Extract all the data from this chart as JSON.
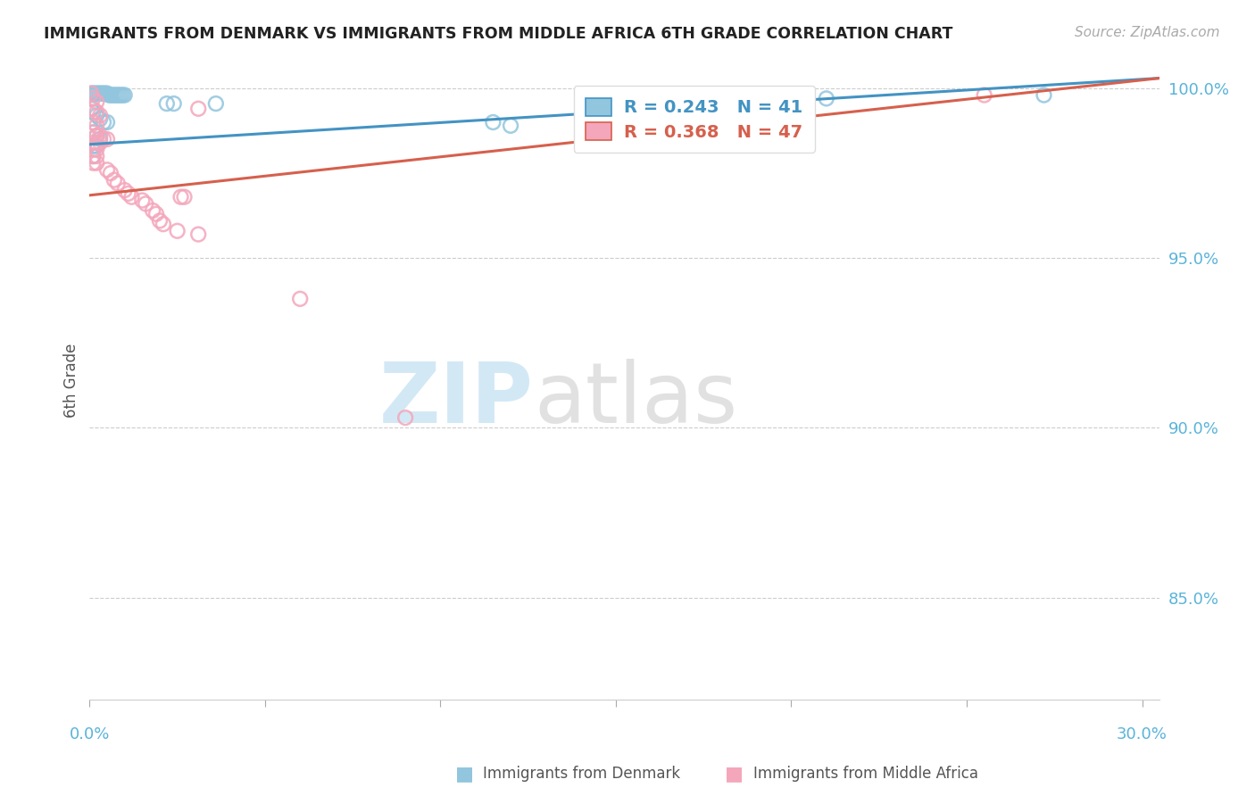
{
  "title": "IMMIGRANTS FROM DENMARK VS IMMIGRANTS FROM MIDDLE AFRICA 6TH GRADE CORRELATION CHART",
  "source": "Source: ZipAtlas.com",
  "ylabel": "6th Grade",
  "ymin": 0.82,
  "ymax": 1.008,
  "xmin": 0.0,
  "xmax": 0.305,
  "blue_color": "#92c5de",
  "pink_color": "#f4a6bb",
  "blue_line_color": "#4393c3",
  "pink_line_color": "#d6604d",
  "legend_text_blue": "#4393c3",
  "legend_text_pink": "#d6604d",
  "blue_points": [
    [
      0.0005,
      0.9985
    ],
    [
      0.001,
      0.9985
    ],
    [
      0.0015,
      0.9985
    ],
    [
      0.002,
      0.9985
    ],
    [
      0.0025,
      0.9985
    ],
    [
      0.003,
      0.9985
    ],
    [
      0.0035,
      0.9985
    ],
    [
      0.004,
      0.9985
    ],
    [
      0.0045,
      0.9985
    ],
    [
      0.005,
      0.9985
    ],
    [
      0.0055,
      0.998
    ],
    [
      0.006,
      0.998
    ],
    [
      0.0065,
      0.998
    ],
    [
      0.007,
      0.998
    ],
    [
      0.0075,
      0.998
    ],
    [
      0.008,
      0.998
    ],
    [
      0.0085,
      0.998
    ],
    [
      0.009,
      0.998
    ],
    [
      0.0095,
      0.998
    ],
    [
      0.01,
      0.998
    ],
    [
      0.0005,
      0.994
    ],
    [
      0.001,
      0.993
    ],
    [
      0.002,
      0.992
    ],
    [
      0.003,
      0.991
    ],
    [
      0.004,
      0.99
    ],
    [
      0.005,
      0.99
    ],
    [
      0.001,
      0.987
    ],
    [
      0.002,
      0.986
    ],
    [
      0.003,
      0.985
    ],
    [
      0.001,
      0.983
    ],
    [
      0.002,
      0.983
    ],
    [
      0.001,
      0.98
    ],
    [
      0.022,
      0.9955
    ],
    [
      0.024,
      0.9955
    ],
    [
      0.036,
      0.9955
    ],
    [
      0.115,
      0.99
    ],
    [
      0.12,
      0.989
    ],
    [
      0.175,
      0.989
    ],
    [
      0.178,
      0.99
    ],
    [
      0.21,
      0.997
    ],
    [
      0.272,
      0.998
    ]
  ],
  "pink_points": [
    [
      0.0005,
      0.9985
    ],
    [
      0.001,
      0.997
    ],
    [
      0.002,
      0.996
    ],
    [
      0.001,
      0.994
    ],
    [
      0.002,
      0.993
    ],
    [
      0.003,
      0.992
    ],
    [
      0.001,
      0.99
    ],
    [
      0.002,
      0.989
    ],
    [
      0.001,
      0.987
    ],
    [
      0.002,
      0.986
    ],
    [
      0.003,
      0.986
    ],
    [
      0.004,
      0.985
    ],
    [
      0.005,
      0.985
    ],
    [
      0.001,
      0.984
    ],
    [
      0.002,
      0.984
    ],
    [
      0.003,
      0.984
    ],
    [
      0.001,
      0.982
    ],
    [
      0.002,
      0.982
    ],
    [
      0.001,
      0.98
    ],
    [
      0.002,
      0.98
    ],
    [
      0.001,
      0.978
    ],
    [
      0.002,
      0.978
    ],
    [
      0.005,
      0.976
    ],
    [
      0.006,
      0.975
    ],
    [
      0.007,
      0.973
    ],
    [
      0.008,
      0.972
    ],
    [
      0.01,
      0.97
    ],
    [
      0.011,
      0.969
    ],
    [
      0.012,
      0.968
    ],
    [
      0.015,
      0.967
    ],
    [
      0.016,
      0.966
    ],
    [
      0.018,
      0.964
    ],
    [
      0.019,
      0.963
    ],
    [
      0.02,
      0.961
    ],
    [
      0.021,
      0.96
    ],
    [
      0.025,
      0.958
    ],
    [
      0.026,
      0.968
    ],
    [
      0.027,
      0.968
    ],
    [
      0.031,
      0.957
    ],
    [
      0.06,
      0.938
    ],
    [
      0.09,
      0.903
    ],
    [
      0.255,
      0.998
    ],
    [
      0.031,
      0.994
    ]
  ],
  "blue_trendline_x": [
    0.0,
    0.305
  ],
  "blue_trendline_y": [
    0.9835,
    1.003
  ],
  "pink_trendline_x": [
    0.0,
    0.305
  ],
  "pink_trendline_y": [
    0.9685,
    1.003
  ],
  "yticks": [
    1.0,
    0.95,
    0.9,
    0.85
  ],
  "ytick_labels": [
    "100.0%",
    "95.0%",
    "90.0%",
    "85.0%"
  ],
  "xtick_positions": [
    0.0,
    0.05,
    0.1,
    0.15,
    0.2,
    0.25,
    0.3
  ]
}
